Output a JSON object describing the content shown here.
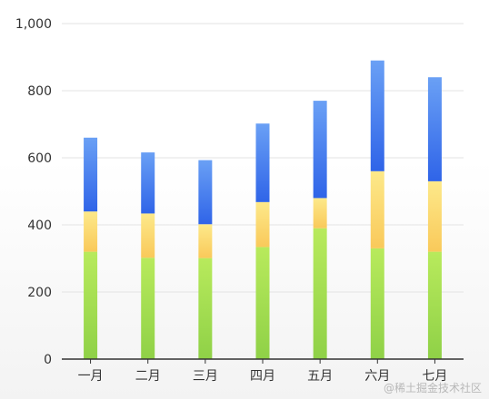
{
  "chart_data": {
    "type": "bar",
    "stacked": true,
    "categories": [
      "一月",
      "二月",
      "三月",
      "四月",
      "五月",
      "六月",
      "七月"
    ],
    "series": [
      {
        "values": [
          320,
          302,
          301,
          334,
          390,
          330,
          320
        ],
        "color_top": "#b8ea5c",
        "color_bottom": "#8fd147"
      },
      {
        "values": [
          120,
          132,
          101,
          134,
          90,
          230,
          210
        ],
        "color_top": "#fde98a",
        "color_bottom": "#f9c95a"
      },
      {
        "values": [
          220,
          182,
          191,
          234,
          290,
          330,
          310
        ],
        "color_top": "#6aa0f5",
        "color_bottom": "#2f64e8"
      }
    ],
    "ylim": [
      0,
      1000
    ],
    "yticks": [
      0,
      200,
      400,
      600,
      800,
      1000
    ],
    "ytick_labels": [
      "0",
      "200",
      "400",
      "600",
      "800",
      "1,000"
    ],
    "grid": true
  },
  "watermark": "@稀土掘金技术社区"
}
